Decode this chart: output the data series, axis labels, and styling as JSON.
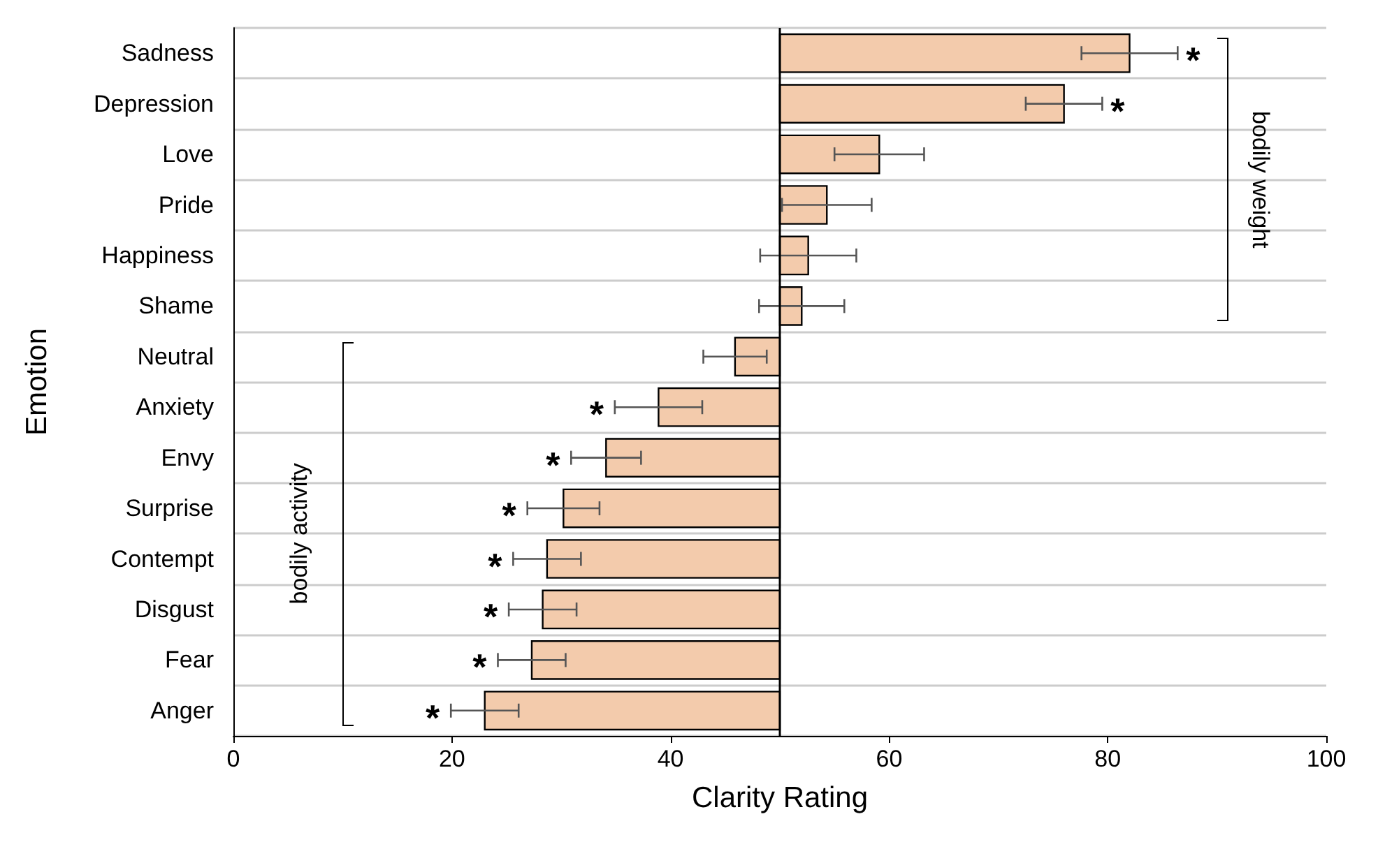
{
  "chart_data": {
    "type": "bar",
    "orientation": "horizontal",
    "xlabel": "Clarity Rating",
    "ylabel": "Emotion",
    "categories": [
      "Sadness",
      "Depression",
      "Love",
      "Pride",
      "Happiness",
      "Shame",
      "Neutral",
      "Anxiety",
      "Envy",
      "Surprise",
      "Contempt",
      "Disgust",
      "Fear",
      "Anger"
    ],
    "base": [
      50,
      50,
      50,
      50,
      50,
      50,
      50,
      50,
      50,
      50,
      50,
      50,
      50,
      50
    ],
    "values": [
      32,
      26,
      9.1,
      4.3,
      2.6,
      2,
      -4.1,
      -11.1,
      -15.9,
      -19.8,
      -21.3,
      -21.7,
      -22.7,
      -27
    ],
    "errors": [
      4.4,
      3.5,
      4.1,
      4.1,
      4.4,
      3.9,
      2.9,
      4,
      3.2,
      3.3,
      3.1,
      3.1,
      3.1,
      3.1
    ],
    "color": "#f3cbac",
    "xlim": [
      0,
      100
    ],
    "xticks": [
      0,
      20,
      40,
      60,
      80,
      100
    ],
    "grid": "y",
    "ref_lines": [
      {
        "axis": "x",
        "value": 50,
        "color": "#000000"
      }
    ],
    "annotations": [
      "bodily weight",
      "bodily activity",
      {
        "text": "*",
        "x": 86.4,
        "y": "Sadness"
      },
      {
        "text": "*",
        "x": 79.5,
        "y": "Depression"
      },
      {
        "text": "*",
        "x": 34.9,
        "y": "Anxiety"
      },
      {
        "text": "*",
        "x": 30.9,
        "y": "Envy"
      },
      {
        "text": "*",
        "x": 26.9,
        "y": "Surprise"
      },
      {
        "text": "*",
        "x": 25.6,
        "y": "Contempt"
      },
      {
        "text": "*",
        "x": 25.2,
        "y": "Disgust"
      },
      {
        "text": "*",
        "x": 24.2,
        "y": "Fear"
      },
      {
        "text": "*",
        "x": 19.9,
        "y": "Anger"
      }
    ]
  }
}
